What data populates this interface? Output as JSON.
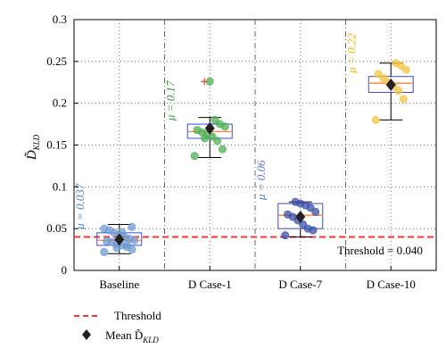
{
  "chart_data": {
    "type": "box",
    "categories": [
      "Baseline",
      "D Case-1",
      "D Case-7",
      "D Case-10"
    ],
    "ylabel_main": "D̃",
    "ylabel_sub": "KLD",
    "ylim": [
      0,
      0.3
    ],
    "yticks": [
      0,
      0.05,
      0.1,
      0.15,
      0.2,
      0.25,
      0.3
    ],
    "ytick_labels": [
      "0",
      "0.05",
      "0.1",
      "0.15",
      "0.2",
      "0.25",
      "0.3"
    ],
    "grid": true,
    "threshold": {
      "value": 0.04,
      "label": "Threshold = 0.040",
      "color": "#ff3333"
    },
    "groups": [
      {
        "name": "Baseline",
        "color": "#6f9bd1",
        "mu_label": "μ = 0.037",
        "mu_color": "#4f7fc1",
        "mean": 0.037,
        "q1": 0.03,
        "median": 0.036,
        "q3": 0.045,
        "whisker_low": 0.02,
        "whisker_high": 0.055,
        "points": [
          0.022,
          0.025,
          0.028,
          0.03,
          0.032,
          0.034,
          0.035,
          0.036,
          0.038,
          0.04,
          0.042,
          0.045,
          0.048,
          0.05,
          0.052,
          0.031,
          0.046,
          0.027
        ]
      },
      {
        "name": "D Case-1",
        "color": "#4caf50",
        "mu_label": "μ = 0.17",
        "mu_color": "#3a9a3a",
        "mean": 0.17,
        "q1": 0.158,
        "median": 0.166,
        "q3": 0.175,
        "whisker_low": 0.135,
        "whisker_high": 0.183,
        "outlier": 0.226,
        "points": [
          0.137,
          0.145,
          0.155,
          0.16,
          0.163,
          0.165,
          0.168,
          0.172,
          0.175,
          0.18,
          0.226,
          0.158
        ]
      },
      {
        "name": "D Case-7",
        "color": "#3a4fa8",
        "mu_label": "μ = 0.06",
        "mu_color": "#5a79c9",
        "mean": 0.064,
        "q1": 0.05,
        "median": 0.066,
        "q3": 0.08,
        "whisker_low": 0.04,
        "whisker_high": 0.082,
        "points": [
          0.042,
          0.048,
          0.05,
          0.055,
          0.06,
          0.064,
          0.067,
          0.07,
          0.075,
          0.078,
          0.08,
          0.082
        ]
      },
      {
        "name": "D Case-10",
        "color": "#f5c542",
        "mu_label": "μ = 0.22",
        "mu_color": "#f0b400",
        "mean": 0.222,
        "q1": 0.213,
        "median": 0.224,
        "q3": 0.232,
        "whisker_low": 0.18,
        "whisker_high": 0.248,
        "points": [
          0.18,
          0.205,
          0.215,
          0.22,
          0.225,
          0.23,
          0.235,
          0.24,
          0.245,
          0.248
        ]
      }
    ],
    "legend": {
      "threshold_label": "Threshold",
      "mean_label_main": "Mean D̃",
      "mean_label_sub": "KLD"
    }
  },
  "colors": {
    "box_edge": "#3b4bd8",
    "median": "#ff7f3f",
    "whisker": "#000000",
    "mean_marker": "#222222",
    "grid": "#555555",
    "separator": "#555555",
    "outlier": "#ff3333"
  }
}
